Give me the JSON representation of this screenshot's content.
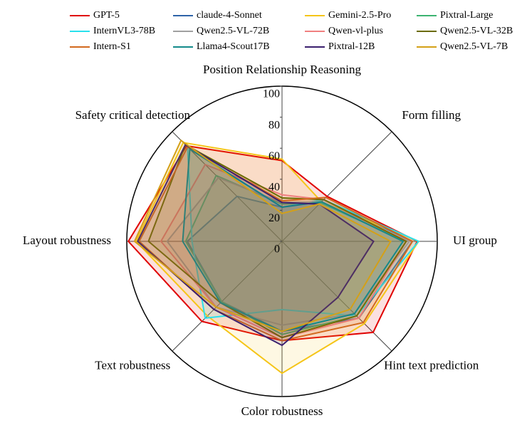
{
  "chart_data": {
    "type": "radar",
    "categories": [
      "Position Relationship Reasoning",
      "Form filling",
      "UI group",
      "Hint text prediction",
      "Color robustness",
      "Text robustness",
      "Layout robustness",
      "Safety critical detection"
    ],
    "rlim": [
      0,
      100
    ],
    "rticks": [
      0,
      20,
      40,
      60,
      80,
      100
    ],
    "grid": true,
    "series": [
      {
        "name": "GPT-5",
        "color": "#e00000",
        "values": [
          52,
          41,
          87,
          83,
          64,
          73,
          99,
          87
        ]
      },
      {
        "name": "claude-4-Sonnet",
        "color": "#2e64a8",
        "values": [
          22,
          38,
          84,
          70,
          58,
          55,
          61,
          41
        ]
      },
      {
        "name": "Gemini-2.5-Pro",
        "color": "#f5c518",
        "values": [
          53,
          36,
          88,
          75,
          85,
          68,
          94,
          90
        ]
      },
      {
        "name": "Pixtral-Large",
        "color": "#3cb371",
        "values": [
          24,
          35,
          80,
          68,
          60,
          55,
          62,
          60
        ]
      },
      {
        "name": "InternVL3-78B",
        "color": "#29e0ec",
        "values": [
          22,
          38,
          88,
          68,
          44,
          70,
          58,
          86
        ]
      },
      {
        "name": "Qwen2.5-VL-72B",
        "color": "#a0a0a0",
        "values": [
          25,
          36,
          82,
          66,
          54,
          60,
          74,
          58
        ]
      },
      {
        "name": "Qwen-vl-plus",
        "color": "#f08080",
        "values": [
          30,
          38,
          80,
          70,
          62,
          60,
          78,
          70
        ]
      },
      {
        "name": "Qwen2.5-VL-32B",
        "color": "#6b6b00",
        "values": [
          28,
          38,
          80,
          68,
          62,
          56,
          86,
          88
        ]
      },
      {
        "name": "Intern-S1",
        "color": "#d2691e",
        "values": [
          26,
          40,
          84,
          74,
          64,
          62,
          92,
          86
        ]
      },
      {
        "name": "Llama4-Scout17B",
        "color": "#138a8a",
        "values": [
          22,
          36,
          78,
          66,
          58,
          56,
          64,
          84
        ]
      },
      {
        "name": "Pixtral-12B",
        "color": "#3b1f6e",
        "values": [
          25,
          34,
          59,
          51,
          67,
          62,
          93,
          88
        ]
      },
      {
        "name": "Qwen2.5-VL-7B",
        "color": "#d4a017",
        "values": [
          18,
          34,
          70,
          62,
          58,
          60,
          95,
          92
        ]
      }
    ]
  }
}
